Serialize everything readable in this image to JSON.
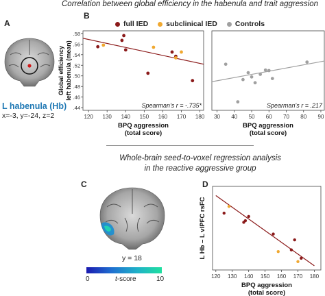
{
  "header_top": "Correlation between global efficiency in the habenula and trait aggression",
  "header_mid_1": "Whole-brain seed-to-voxel regression analysis",
  "header_mid_2": "in the reactive aggressive group",
  "panel_labels": {
    "a": "A",
    "b": "B",
    "c": "C",
    "d": "D"
  },
  "panel_a": {
    "title": "L habenula (Hb)",
    "coords": "x=-3, y=-24, z=2",
    "colors": {
      "title": "#1f78b4",
      "marker": "#d01818"
    }
  },
  "legend": [
    {
      "label": "full IED",
      "color": "#8b1a1a"
    },
    {
      "label": "subclinical IED",
      "color": "#f0a830"
    },
    {
      "label": "Controls",
      "color": "#a0a0a0"
    }
  ],
  "panel_c": {
    "slice_label": "y = 18",
    "colorbar": {
      "min_label": "0",
      "max_label": "10",
      "title_prefix": "t",
      "title_suffix": "-score",
      "colors": [
        "#1a1ab0",
        "#1f6fd0",
        "#1fb0c8",
        "#20e0a0"
      ]
    }
  },
  "chart_data": [
    {
      "id": "B-left",
      "type": "scatter",
      "ylabel": "Global efficiency\nleft habenula (mean)",
      "xlabel": "BPQ aggression\n(total score)",
      "xlim": [
        117,
        182
      ],
      "ylim": [
        0.435,
        0.585
      ],
      "xticks": [
        120,
        130,
        140,
        150,
        160,
        170,
        180
      ],
      "yticks": [
        0.44,
        0.46,
        0.48,
        0.5,
        0.52,
        0.54,
        0.56,
        0.58
      ],
      "ytick_labels": [
        ".44",
        ".46",
        ".48",
        ".50",
        ".52",
        ".54",
        ".56",
        ".58"
      ],
      "annotation": "Spearman's r = -.735*",
      "series": [
        {
          "name": "full IED",
          "color": "#8b1a1a",
          "x": [
            125,
            138,
            139,
            140,
            152,
            165,
            167,
            176
          ],
          "y": [
            0.555,
            0.567,
            0.576,
            0.549,
            0.505,
            0.545,
            0.537,
            0.491
          ]
        },
        {
          "name": "subclinical IED",
          "color": "#f0a830",
          "x": [
            128,
            155,
            167,
            170
          ],
          "y": [
            0.558,
            0.554,
            0.534,
            0.545
          ]
        }
      ],
      "regression": {
        "x": [
          117,
          182
        ],
        "y": [
          0.571,
          0.522
        ],
        "color": "#8b1a1a"
      }
    },
    {
      "id": "B-right",
      "type": "scatter",
      "xlabel": "BPQ aggression\n(total score)",
      "xlim": [
        27,
        92
      ],
      "ylim": [
        0.435,
        0.585
      ],
      "xticks": [
        30,
        40,
        50,
        60,
        70,
        80,
        90
      ],
      "yticks": [
        0.44,
        0.46,
        0.48,
        0.5,
        0.52,
        0.54,
        0.56,
        0.58
      ],
      "ytick_labels": [
        ".44",
        ".46",
        ".48",
        ".50",
        ".52",
        ".54",
        ".56",
        ".58"
      ],
      "annotation": "Spearman's r = .217",
      "series": [
        {
          "name": "Controls",
          "color": "#a0a0a0",
          "x": [
            35,
            42,
            45,
            48,
            50,
            52,
            55,
            58,
            60,
            62,
            82
          ],
          "y": [
            0.522,
            0.451,
            0.493,
            0.506,
            0.498,
            0.487,
            0.503,
            0.511,
            0.51,
            0.495,
            0.526
          ]
        }
      ],
      "regression": {
        "x": [
          27,
          92
        ],
        "y": [
          0.489,
          0.528
        ],
        "color": "#a0a0a0"
      }
    },
    {
      "id": "D",
      "type": "scatter",
      "ylabel": "L Hb – L vlPFC rsFC",
      "xlabel": "BPQ aggression\n(total score)",
      "xlim": [
        118,
        184
      ],
      "ylim": [
        0,
        10
      ],
      "xticks": [
        120,
        130,
        140,
        150,
        160,
        170,
        180
      ],
      "yticks": [],
      "series": [
        {
          "name": "full IED",
          "color": "#8b1a1a",
          "x": [
            125,
            137,
            138,
            140,
            155,
            166,
            168,
            172
          ],
          "y": [
            6.8,
            5.7,
            5.9,
            6.4,
            4.3,
            2.4,
            3.6,
            1.4
          ]
        },
        {
          "name": "subclinical IED",
          "color": "#f0a830",
          "x": [
            128,
            158,
            170
          ],
          "y": [
            7.6,
            2.2,
            1.0
          ]
        }
      ],
      "regression": {
        "x": [
          120,
          180
        ],
        "y": [
          8.9,
          0.5
        ],
        "color": "#8b1a1a"
      }
    }
  ]
}
